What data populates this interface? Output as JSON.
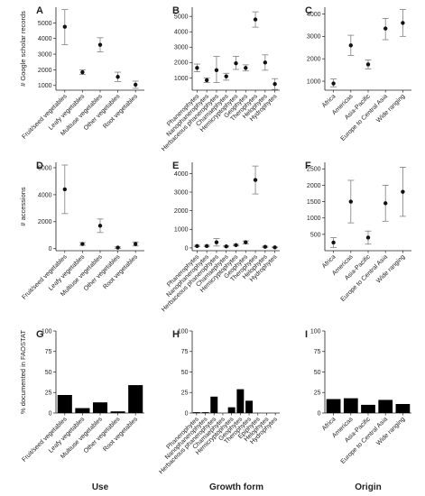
{
  "figure": {
    "column_labels": [
      "Use",
      "Growth form",
      "Origin"
    ]
  },
  "colors": {
    "bar": "#000000",
    "point": "#111111",
    "errorbar": "#7f7f7f",
    "axis": "#222222"
  },
  "chart_data": [
    {
      "panel": "A",
      "type": "scatter",
      "ylabel": "# Google scholar records",
      "ylim": [
        700,
        6000
      ],
      "yticks": [
        1000,
        2000,
        3000,
        4000,
        5000
      ],
      "categories": [
        "Fruit/seed vegetables",
        "Leafy vegetables",
        "Multiuse vegetables",
        "Other vegetables",
        "Root vegetables"
      ],
      "values": [
        4750,
        1850,
        3600,
        1550,
        1050
      ],
      "lower": [
        3600,
        1700,
        3150,
        1250,
        820
      ],
      "upper": [
        5850,
        2000,
        4050,
        1850,
        1280
      ]
    },
    {
      "panel": "B",
      "type": "scatter",
      "ylabel": "",
      "ylim": [
        200,
        5600
      ],
      "yticks": [
        1000,
        2000,
        3000,
        4000,
        5000
      ],
      "categories": [
        "Phanerophytes",
        "Nanophanerophytes",
        "Herbaceous phanerophytes",
        "Chamaephytes",
        "Hemicryptophytes",
        "Geophytes",
        "Therophytes",
        "Helophytes",
        "Hydrophytes"
      ],
      "values": [
        1650,
        850,
        1500,
        1100,
        1950,
        1650,
        4800,
        2000,
        600
      ],
      "lower": [
        1400,
        700,
        700,
        850,
        1550,
        1450,
        4300,
        1500,
        250
      ],
      "upper": [
        1900,
        1000,
        2400,
        1300,
        2400,
        1850,
        5300,
        2500,
        950
      ]
    },
    {
      "panel": "C",
      "type": "scatter",
      "ylabel": "",
      "ylim": [
        600,
        4300
      ],
      "yticks": [
        1000,
        2000,
        3000,
        4000
      ],
      "categories": [
        "Africa",
        "Americas",
        "Asia-Pacific",
        "Europe to Central Asia",
        "Wide ranging"
      ],
      "values": [
        900,
        2600,
        1750,
        3350,
        3600
      ],
      "lower": [
        750,
        2150,
        1550,
        2850,
        3000
      ],
      "upper": [
        1100,
        3050,
        1950,
        3800,
        4200
      ]
    },
    {
      "panel": "D",
      "type": "scatter",
      "ylabel": "# accessions",
      "ylim": [
        -150,
        6400
      ],
      "yticks": [
        0,
        2000,
        4000,
        6000
      ],
      "categories": [
        "Fruit/seed vegetables",
        "Leafy vegetables",
        "Multiuse vegetables",
        "Other vegetables",
        "Root vegetables"
      ],
      "values": [
        4400,
        350,
        1700,
        80,
        350
      ],
      "lower": [
        2600,
        250,
        1200,
        30,
        200
      ],
      "upper": [
        6200,
        450,
        2200,
        130,
        500
      ]
    },
    {
      "panel": "E",
      "type": "scatter",
      "ylabel": "",
      "ylim": [
        -150,
        4600
      ],
      "yticks": [
        0,
        1000,
        2000,
        3000,
        4000
      ],
      "categories": [
        "Phanerophytes",
        "Nanophanerophytes",
        "Herbaceous phanerophytes",
        "Chamaephytes",
        "Hemicryptophytes",
        "Geophytes",
        "Therophytes",
        "Helophytes",
        "Hydrophytes"
      ],
      "values": [
        100,
        100,
        300,
        80,
        150,
        300,
        3650,
        60,
        30
      ],
      "lower": [
        60,
        60,
        100,
        50,
        110,
        220,
        2900,
        30,
        10
      ],
      "upper": [
        140,
        140,
        500,
        110,
        190,
        380,
        4400,
        90,
        50
      ]
    },
    {
      "panel": "F",
      "type": "scatter",
      "ylabel": "",
      "ylim": [
        0,
        2700
      ],
      "yticks": [
        500,
        1000,
        1500,
        2000,
        2500
      ],
      "categories": [
        "Africa",
        "Americas",
        "Asia-Pacific",
        "Europe to Central Asia",
        "Wide ranging"
      ],
      "values": [
        250,
        1500,
        400,
        1450,
        1800
      ],
      "lower": [
        100,
        850,
        200,
        900,
        1050
      ],
      "upper": [
        400,
        2150,
        600,
        2000,
        2550
      ]
    },
    {
      "panel": "G",
      "type": "bar",
      "ylabel": "% documented in FAOSTAT",
      "ylim": [
        0,
        100
      ],
      "yticks": [
        0,
        25,
        50,
        75,
        100
      ],
      "categories": [
        "Fruit/seed vegetables",
        "Leafy vegetables",
        "Multiuse vegetables",
        "Other vegetables",
        "Root vegetables"
      ],
      "values": [
        22,
        6,
        13,
        2,
        34
      ]
    },
    {
      "panel": "H",
      "type": "bar",
      "ylabel": "",
      "ylim": [
        0,
        100
      ],
      "yticks": [
        0,
        25,
        50,
        75,
        100
      ],
      "categories": [
        "Phanerophytes",
        "Nanophanerophytes",
        "Herbaceous phanerophytes",
        "Chamaephytes",
        "Hemicryptophytes",
        "Geophytes",
        "Therophytes",
        "Epiphytes",
        "Helophytes",
        "Hydrophytes"
      ],
      "values": [
        1,
        1,
        20,
        0,
        7,
        29,
        15,
        0,
        0,
        0
      ]
    },
    {
      "panel": "I",
      "type": "bar",
      "ylabel": "",
      "ylim": [
        0,
        100
      ],
      "yticks": [
        0,
        25,
        50,
        75,
        100
      ],
      "categories": [
        "Africa",
        "Americas",
        "Asia-Pacific",
        "Europe to Central Asia",
        "Wide ranging"
      ],
      "values": [
        17,
        18,
        10,
        16,
        11
      ]
    }
  ]
}
